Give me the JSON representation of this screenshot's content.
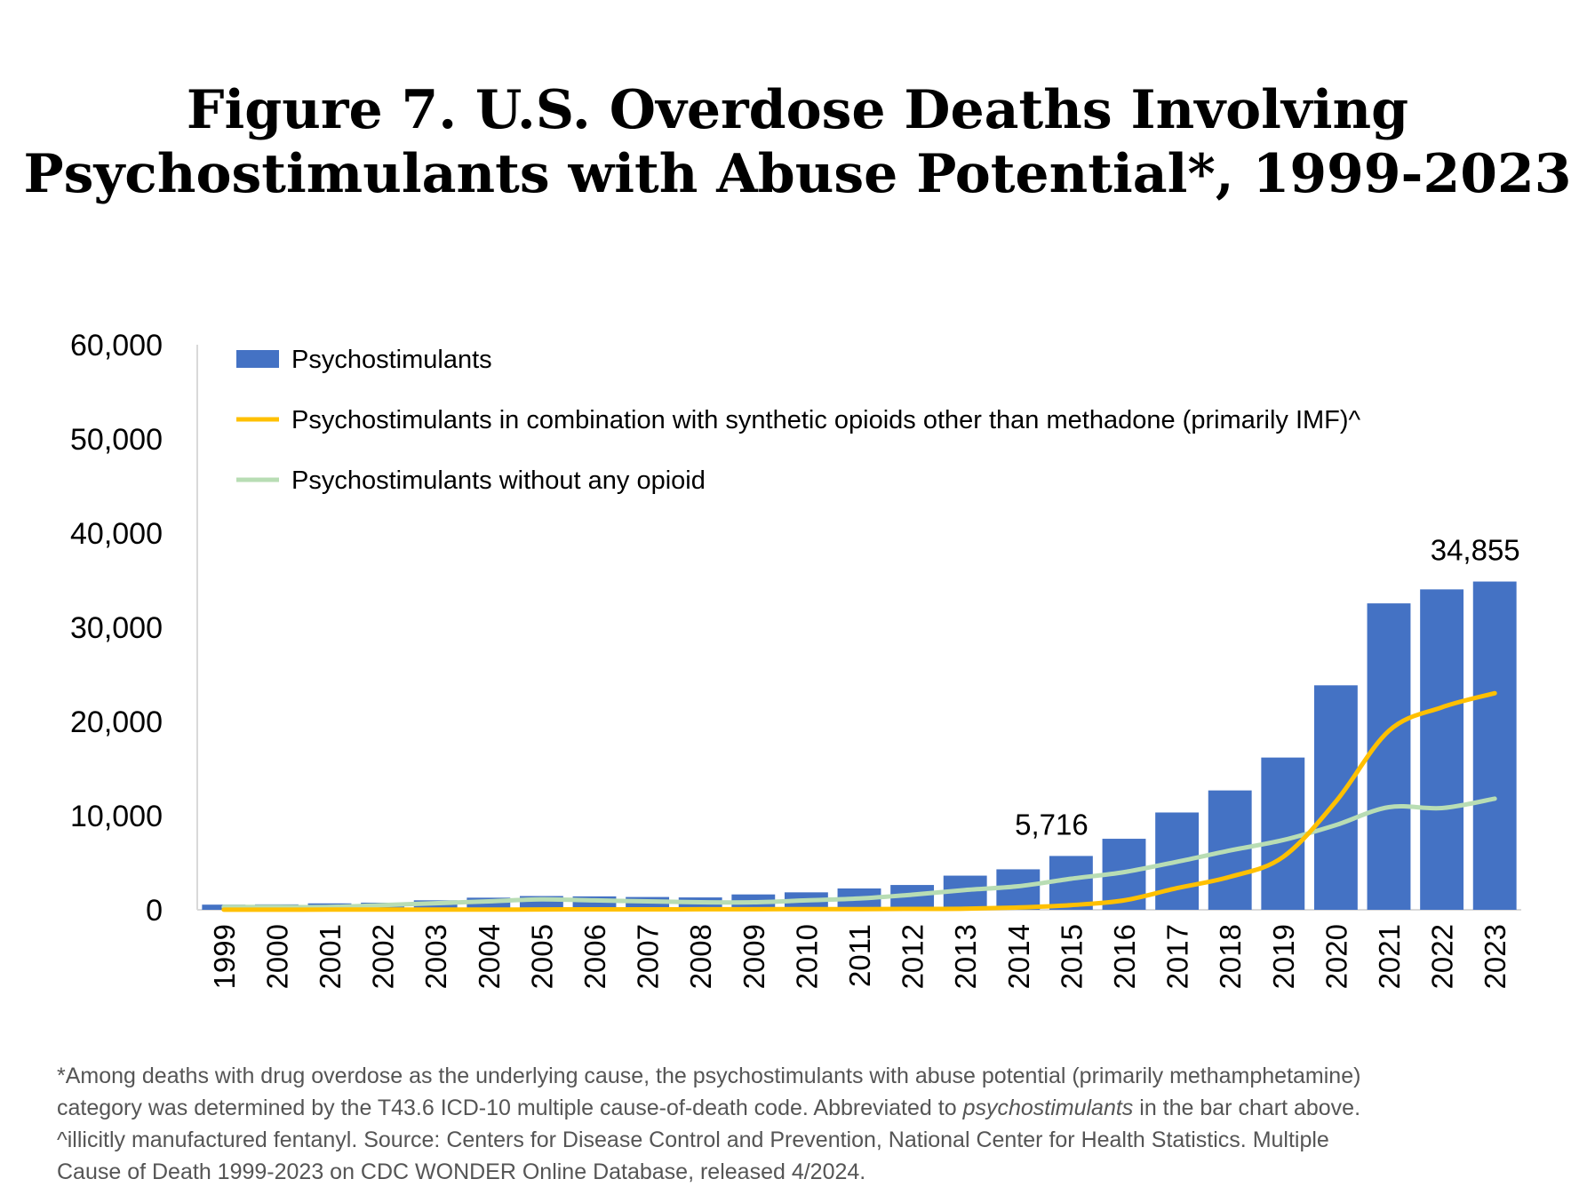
{
  "title": {
    "line1": "Figure 7. U.S. Overdose Deaths Involving",
    "line2": "Psychostimulants with Abuse Potential*, 1999-2023"
  },
  "colors": {
    "bars": "#4472C4",
    "combo_line": "#FFC000",
    "no_opioid_line": "#B8DDB4",
    "axis": "#D9D9D9"
  },
  "chart_data": {
    "type": "bar",
    "categories": [
      "1999",
      "2000",
      "2001",
      "2002",
      "2003",
      "2004",
      "2005",
      "2006",
      "2007",
      "2008",
      "2009",
      "2010",
      "2011",
      "2012",
      "2013",
      "2014",
      "2015",
      "2016",
      "2017",
      "2018",
      "2019",
      "2020",
      "2021",
      "2022",
      "2023"
    ],
    "ylim": [
      0,
      60000
    ],
    "yticks": [
      0,
      10000,
      20000,
      30000,
      40000,
      50000,
      60000
    ],
    "ytick_labels": [
      "0",
      "10,000",
      "20,000",
      "30,000",
      "40,000",
      "50,000",
      "60,000"
    ],
    "grid": false,
    "legend_position": "top-left",
    "series": [
      {
        "name": "Psychostimulants",
        "type": "bar",
        "values": [
          547,
          578,
          684,
          757,
          1009,
          1288,
          1461,
          1425,
          1359,
          1314,
          1632,
          1854,
          2266,
          2635,
          3627,
          4298,
          5716,
          7542,
          10333,
          12676,
          16167,
          23837,
          32537,
          34022,
          34855
        ]
      },
      {
        "name": "Psychostimulants in combination with synthetic opioids other than methadone (primarily IMF)^",
        "type": "line",
        "values": [
          10,
          12,
          15,
          18,
          22,
          28,
          35,
          45,
          50,
          55,
          60,
          70,
          80,
          90,
          120,
          250,
          500,
          1000,
          2300,
          3500,
          5600,
          11500,
          19000,
          21500,
          23000
        ]
      },
      {
        "name": "Psychostimulants without any opioid",
        "type": "line",
        "values": [
          300,
          300,
          300,
          500,
          700,
          900,
          1100,
          1000,
          900,
          800,
          800,
          1000,
          1200,
          1600,
          2100,
          2500,
          3300,
          4000,
          5100,
          6300,
          7400,
          9000,
          10900,
          10800,
          11800
        ]
      }
    ],
    "annotations": [
      {
        "category": "2015",
        "text": "5,716"
      },
      {
        "category": "2023",
        "text": "34,855"
      }
    ]
  },
  "footnote": {
    "line1": "*Among deaths with drug overdose as the underlying cause, the psychostimulants with abuse potential (primarily methamphetamine)",
    "line2_before": "category was determined by the T43.6 ICD-10 multiple cause-of-death code. Abbreviated to ",
    "line2_italic": "psychostimulants",
    "line2_after": " in the bar chart above.",
    "line3": "^illicitly manufactured fentanyl. Source: Centers for Disease Control and Prevention, National Center for Health Statistics. Multiple",
    "line4": "Cause of Death 1999-2023 on CDC WONDER Online Database, released 4/2024."
  }
}
